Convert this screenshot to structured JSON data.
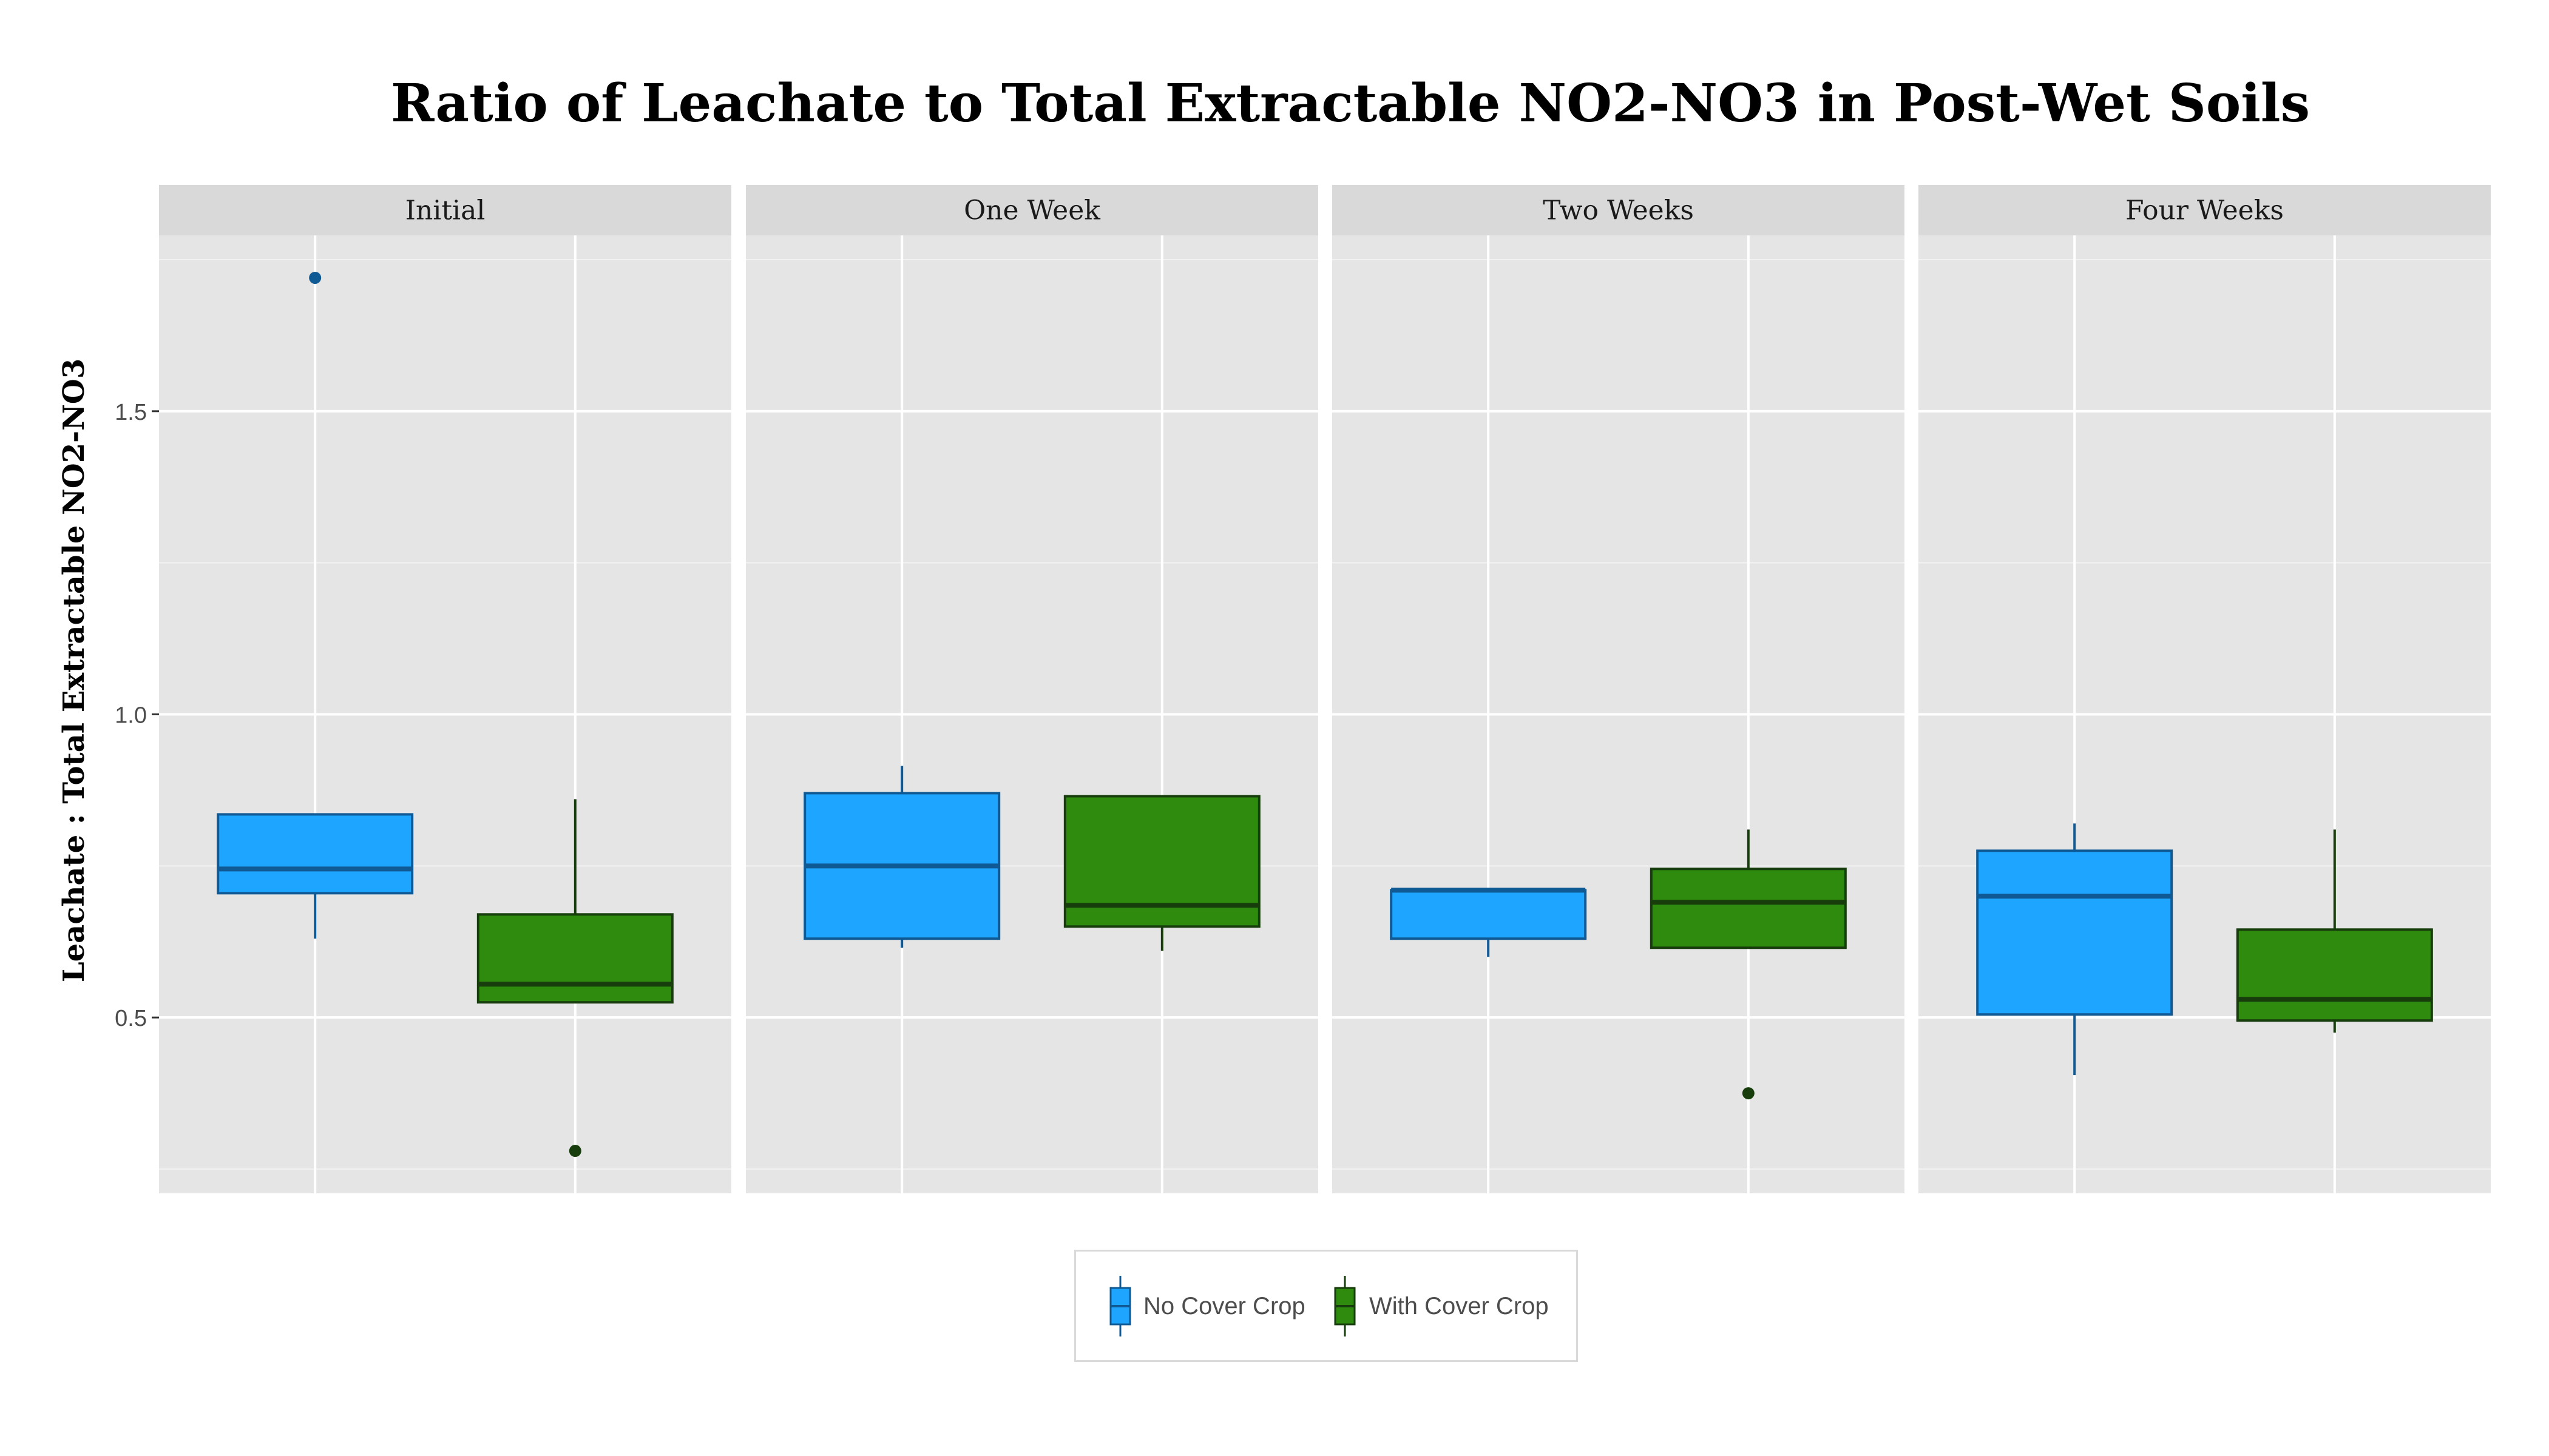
{
  "chart_data": {
    "type": "box",
    "title": "Ratio of Leachate to Total Extractable NO2-NO3 in Post-Wet Soils",
    "ylabel": "Leachate : Total Extractable NO2-NO3",
    "xlabel": "",
    "ylim": [
      0.21,
      1.79
    ],
    "yticks": [
      0.5,
      1.0,
      1.5
    ],
    "ytick_labels": [
      "0.5",
      "1.0",
      "1.5"
    ],
    "grid": true,
    "legend_position": "bottom",
    "series": [
      {
        "name": "No Cover Crop",
        "color": "#1ea5ff",
        "line_color": "#0f5a94"
      },
      {
        "name": "With Cover Crop",
        "color": "#2e8b0e",
        "line_color": "#163d0b"
      }
    ],
    "facets": [
      {
        "label": "Initial",
        "boxes": [
          {
            "series": "No Cover Crop",
            "min": 0.63,
            "q1": 0.705,
            "median": 0.745,
            "q3": 0.835,
            "max": 0.835,
            "outliers": [
              1.72
            ]
          },
          {
            "series": "With Cover Crop",
            "min": 0.525,
            "q1": 0.525,
            "median": 0.555,
            "q3": 0.67,
            "max": 0.86,
            "outliers": [
              0.28
            ]
          }
        ]
      },
      {
        "label": "One Week",
        "boxes": [
          {
            "series": "No Cover Crop",
            "min": 0.615,
            "q1": 0.63,
            "median": 0.75,
            "q3": 0.87,
            "max": 0.915,
            "outliers": []
          },
          {
            "series": "With Cover Crop",
            "min": 0.61,
            "q1": 0.65,
            "median": 0.685,
            "q3": 0.865,
            "max": 0.865,
            "outliers": []
          }
        ]
      },
      {
        "label": "Two Weeks",
        "boxes": [
          {
            "series": "No Cover Crop",
            "min": 0.6,
            "q1": 0.63,
            "median": 0.71,
            "q3": 0.71,
            "max": 0.71,
            "outliers": []
          },
          {
            "series": "With Cover Crop",
            "min": 0.615,
            "q1": 0.615,
            "median": 0.69,
            "q3": 0.745,
            "max": 0.81,
            "outliers": [
              0.375
            ]
          }
        ]
      },
      {
        "label": "Four Weeks",
        "boxes": [
          {
            "series": "No Cover Crop",
            "min": 0.405,
            "q1": 0.505,
            "median": 0.7,
            "q3": 0.775,
            "max": 0.82,
            "outliers": []
          },
          {
            "series": "With Cover Crop",
            "min": 0.475,
            "q1": 0.495,
            "median": 0.53,
            "q3": 0.645,
            "max": 0.81,
            "outliers": []
          }
        ]
      }
    ]
  }
}
